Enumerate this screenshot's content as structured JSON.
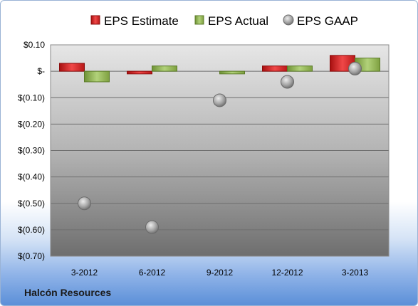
{
  "chart_data": {
    "type": "bar",
    "categories": [
      "3-2012",
      "6-2012",
      "9-2012",
      "12-2012",
      "3-2013"
    ],
    "series": [
      {
        "name": "EPS Estimate",
        "kind": "bar",
        "color": "#d42020",
        "values": [
          0.03,
          -0.01,
          null,
          0.02,
          0.06
        ]
      },
      {
        "name": "EPS Actual",
        "kind": "bar",
        "color": "#8ab04a",
        "values": [
          -0.04,
          0.02,
          -0.01,
          0.02,
          0.05
        ]
      },
      {
        "name": "EPS GAAP",
        "kind": "marker",
        "color": "#9a9a9a",
        "values": [
          -0.5,
          -0.59,
          -0.11,
          -0.04,
          0.01
        ]
      }
    ],
    "yticks": [
      "$0.10",
      "$-",
      "$(0.10)",
      "$(0.20)",
      "$(0.30)",
      "$(0.40)",
      "$(0.50)",
      "$(0.60)",
      "$(0.70)"
    ],
    "ylim": [
      -0.7,
      0.1
    ],
    "grid": true,
    "legend_position": "top"
  },
  "footer": {
    "company": "Halcón Resources"
  }
}
